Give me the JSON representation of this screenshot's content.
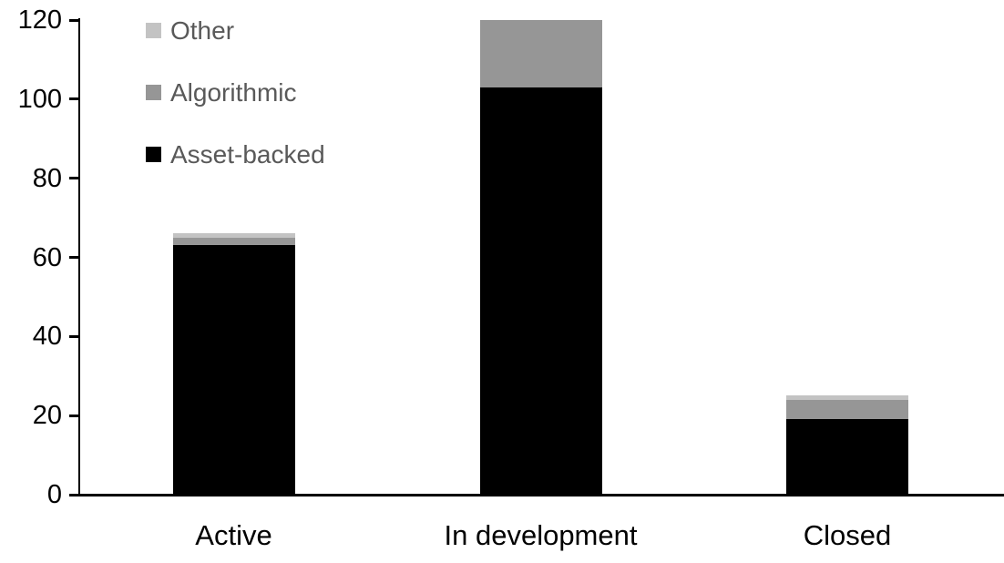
{
  "chart_data": {
    "type": "bar",
    "stacked": true,
    "title": "",
    "categories": [
      "Active",
      "In development",
      "Closed"
    ],
    "series": [
      {
        "name": "Asset-backed",
        "color": "#000000",
        "values": [
          63,
          103,
          19
        ]
      },
      {
        "name": "Algorithmic",
        "color": "#969696",
        "values": [
          2,
          17,
          5
        ]
      },
      {
        "name": "Other",
        "color": "#c3c3c3",
        "values": [
          1,
          0,
          1
        ]
      }
    ],
    "y_ticks": [
      0,
      20,
      40,
      60,
      80,
      100,
      120
    ],
    "ylim": [
      0,
      120
    ],
    "xlabel": "",
    "ylabel": "",
    "grid": false,
    "legend_position": "top-left",
    "legend_order": [
      "Other",
      "Algorithmic",
      "Asset-backed"
    ]
  },
  "colors": {
    "background": "#ffffff",
    "axis": "#000000",
    "tick_label_text": "#000000",
    "category_label_text": "#000000",
    "legend_text": "#595959"
  }
}
